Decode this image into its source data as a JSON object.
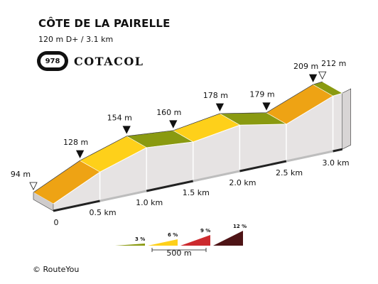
{
  "header": {
    "title": "CÔTE DE LA PAIRELLE",
    "subtitle": "120 m D+ / 3.1 km",
    "badge_number": "978",
    "badge_label": "COTACOL"
  },
  "footer": {
    "credit": "© RouteYou"
  },
  "chart_data": {
    "type": "area",
    "title": "CÔTE DE LA PAIRELLE",
    "subtitle": "120 m D+ / 3.1 km",
    "x_unit": "km",
    "y_unit": "m",
    "x": [
      0,
      0.5,
      1.0,
      1.5,
      2.0,
      2.5,
      3.0,
      3.1
    ],
    "y": [
      94,
      128,
      154,
      160,
      178,
      179,
      209,
      212
    ],
    "elevation_labels": [
      "94 m",
      "128 m",
      "154 m",
      "160 m",
      "178 m",
      "179 m",
      "209 m",
      "212 m"
    ],
    "open_markers": [
      0,
      7
    ],
    "x_tick_labels": [
      "0",
      "0.5 km",
      "1.0 km",
      "1.5 km",
      "2.0 km",
      "2.5 km",
      "3.0 km"
    ],
    "segment_colors": [
      "#eea314",
      "#fed01a",
      "#8a9a10",
      "#fed01a",
      "#8a9a10",
      "#eea314",
      "#8a9a10"
    ],
    "legend": {
      "items": [
        {
          "label": "3 %",
          "color": "#8a9a10"
        },
        {
          "label": "6 %",
          "color": "#fed01a"
        },
        {
          "label": "9 %",
          "color": "#cc2a2e"
        },
        {
          "label": "12 %",
          "color": "#4e1416"
        }
      ],
      "scale_label": "500 m"
    }
  }
}
